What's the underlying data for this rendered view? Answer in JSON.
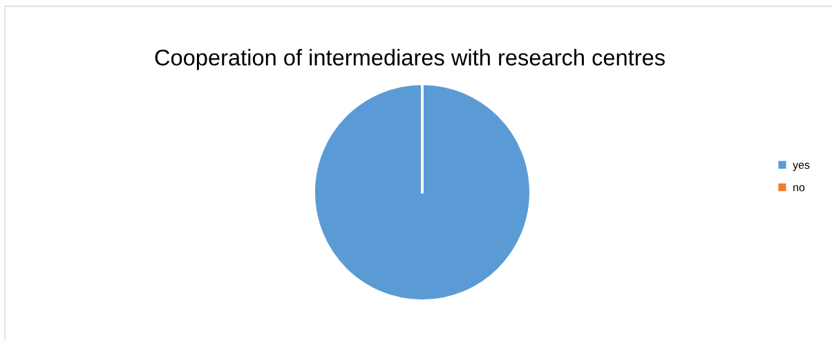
{
  "chart_data": {
    "type": "pie",
    "title": "Cooperation of intermediares with research centres",
    "categories": [
      "yes",
      "no"
    ],
    "values": [
      100,
      0
    ],
    "colors": [
      "#5b9bd5",
      "#ed7d31"
    ],
    "legend": "right"
  }
}
